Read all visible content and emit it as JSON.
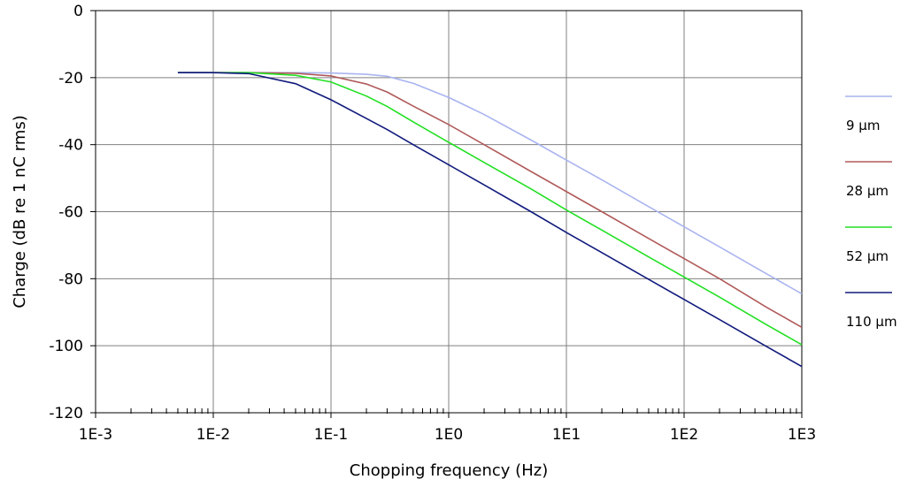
{
  "chart_data": {
    "type": "line",
    "xscale": "log",
    "xlim": [
      0.001,
      1000
    ],
    "ylim": [
      -120,
      0
    ],
    "grid": true,
    "legend_position": "right",
    "xlabel": "Chopping frequency (Hz)",
    "ylabel": "Charge (dB re 1 nC rms)",
    "x_tick_labels": [
      "1E-3",
      "1E-2",
      "1E-1",
      "1E0",
      "1E1",
      "1E2",
      "1E3"
    ],
    "y_tick_labels": [
      "0",
      "-20",
      "-40",
      "-60",
      "-80",
      "-100",
      "-120"
    ],
    "series": [
      {
        "name": "9 μm",
        "color": "#a9b4f0",
        "x": [
          0.005,
          0.01,
          0.02,
          0.05,
          0.1,
          0.2,
          0.3,
          0.5,
          1,
          2,
          5,
          10,
          20,
          50,
          100,
          200,
          500,
          1000
        ],
        "y": [
          -18.5,
          -18.5,
          -18.5,
          -18.5,
          -18.6,
          -19.0,
          -19.6,
          -21.7,
          -25.9,
          -31.0,
          -38.6,
          -44.6,
          -50.5,
          -58.5,
          -64.5,
          -70.5,
          -78.5,
          -84.5
        ]
      },
      {
        "name": "28 μm",
        "color": "#b05a5a",
        "x": [
          0.005,
          0.01,
          0.02,
          0.05,
          0.1,
          0.2,
          0.3,
          0.5,
          1,
          2,
          5,
          10,
          20,
          50,
          100,
          200,
          500,
          1000
        ],
        "y": [
          -18.5,
          -18.5,
          -18.5,
          -18.7,
          -19.5,
          -21.9,
          -24.3,
          -28.5,
          -34.0,
          -40.0,
          -48.0,
          -54.0,
          -60.0,
          -68.0,
          -74.0,
          -80.0,
          -88.5,
          -94.5
        ]
      },
      {
        "name": "52 μm",
        "color": "#22e022",
        "x": [
          0.005,
          0.01,
          0.02,
          0.05,
          0.1,
          0.2,
          0.3,
          0.5,
          1,
          2,
          5,
          10,
          20,
          50,
          100,
          200,
          500,
          1000
        ],
        "y": [
          -18.5,
          -18.5,
          -18.5,
          -19.3,
          -21.3,
          -25.5,
          -28.6,
          -33.2,
          -39.3,
          -45.3,
          -53.2,
          -59.5,
          -65.5,
          -73.5,
          -79.5,
          -85.5,
          -93.7,
          -99.7
        ]
      },
      {
        "name": "110 μm",
        "color": "#101a7c",
        "x": [
          0.005,
          0.01,
          0.02,
          0.05,
          0.1,
          0.2,
          0.3,
          0.5,
          1,
          2,
          5,
          10,
          20,
          50,
          100,
          200,
          500,
          1000
        ],
        "y": [
          -18.5,
          -18.5,
          -18.8,
          -21.8,
          -26.6,
          -32.2,
          -35.5,
          -40.0,
          -46.0,
          -52.0,
          -60.0,
          -66.2,
          -72.2,
          -80.2,
          -86.2,
          -92.2,
          -100.2,
          -106.2
        ]
      }
    ]
  }
}
